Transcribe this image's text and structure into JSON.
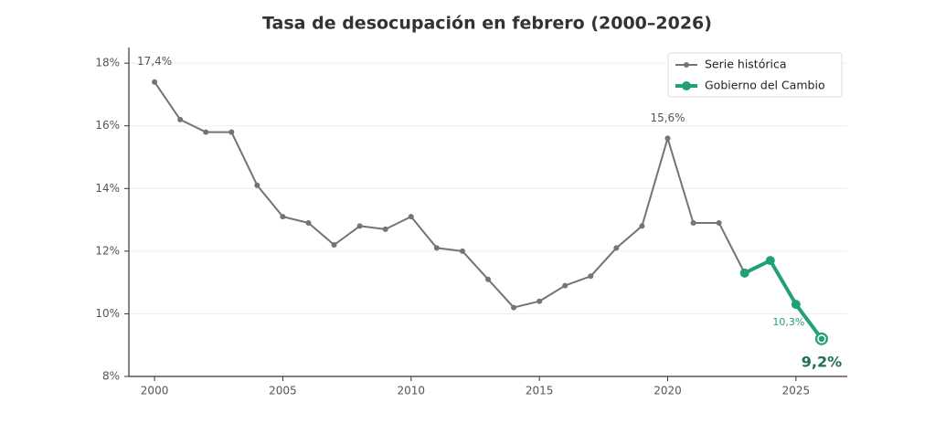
{
  "chart_data": {
    "type": "line",
    "title": "Tasa de desocupación en febrero (2000–2026)",
    "x": [
      2000,
      2001,
      2002,
      2003,
      2004,
      2005,
      2006,
      2007,
      2008,
      2009,
      2010,
      2011,
      2012,
      2013,
      2014,
      2015,
      2016,
      2017,
      2018,
      2019,
      2020,
      2021,
      2022,
      2023,
      2024,
      2025,
      2026
    ],
    "series": [
      {
        "name": "Serie histórica",
        "color": "#757373",
        "values": [
          17.4,
          16.2,
          15.8,
          15.8,
          14.1,
          13.1,
          12.9,
          12.2,
          12.8,
          12.7,
          13.1,
          12.1,
          12.0,
          11.1,
          10.2,
          10.4,
          10.9,
          11.2,
          12.1,
          12.8,
          15.6,
          12.9,
          12.9,
          11.3,
          null,
          null,
          null
        ],
        "value_labels": [
          "17,4%",
          null,
          null,
          null,
          null,
          null,
          null,
          null,
          null,
          null,
          null,
          null,
          null,
          null,
          null,
          null,
          null,
          null,
          null,
          null,
          "15,6%",
          null,
          null,
          null,
          null,
          null,
          null
        ]
      },
      {
        "name": "Gobierno del Cambio",
        "color": "#22a07a",
        "values": [
          null,
          null,
          null,
          null,
          null,
          null,
          null,
          null,
          null,
          null,
          null,
          null,
          null,
          null,
          null,
          null,
          null,
          null,
          null,
          null,
          null,
          null,
          null,
          11.3,
          11.7,
          10.3,
          9.2
        ],
        "value_labels": [
          null,
          null,
          null,
          null,
          null,
          null,
          null,
          null,
          null,
          null,
          null,
          null,
          null,
          null,
          null,
          null,
          null,
          null,
          null,
          null,
          null,
          null,
          null,
          null,
          null,
          "10,3%",
          "9,2%"
        ]
      }
    ],
    "xlim": [
      1999,
      2027
    ],
    "xticks": [
      2000,
      2005,
      2010,
      2015,
      2020,
      2025
    ],
    "ylim": [
      8,
      18.5
    ],
    "yticks": [
      {
        "value": 8,
        "label": "8%"
      },
      {
        "value": 10,
        "label": "10%"
      },
      {
        "value": 12,
        "label": "12%"
      },
      {
        "value": 14,
        "label": "14%"
      },
      {
        "value": 16,
        "label": "16%"
      },
      {
        "value": 18,
        "label": "18%"
      }
    ],
    "grid": true,
    "legend": "upper right"
  }
}
